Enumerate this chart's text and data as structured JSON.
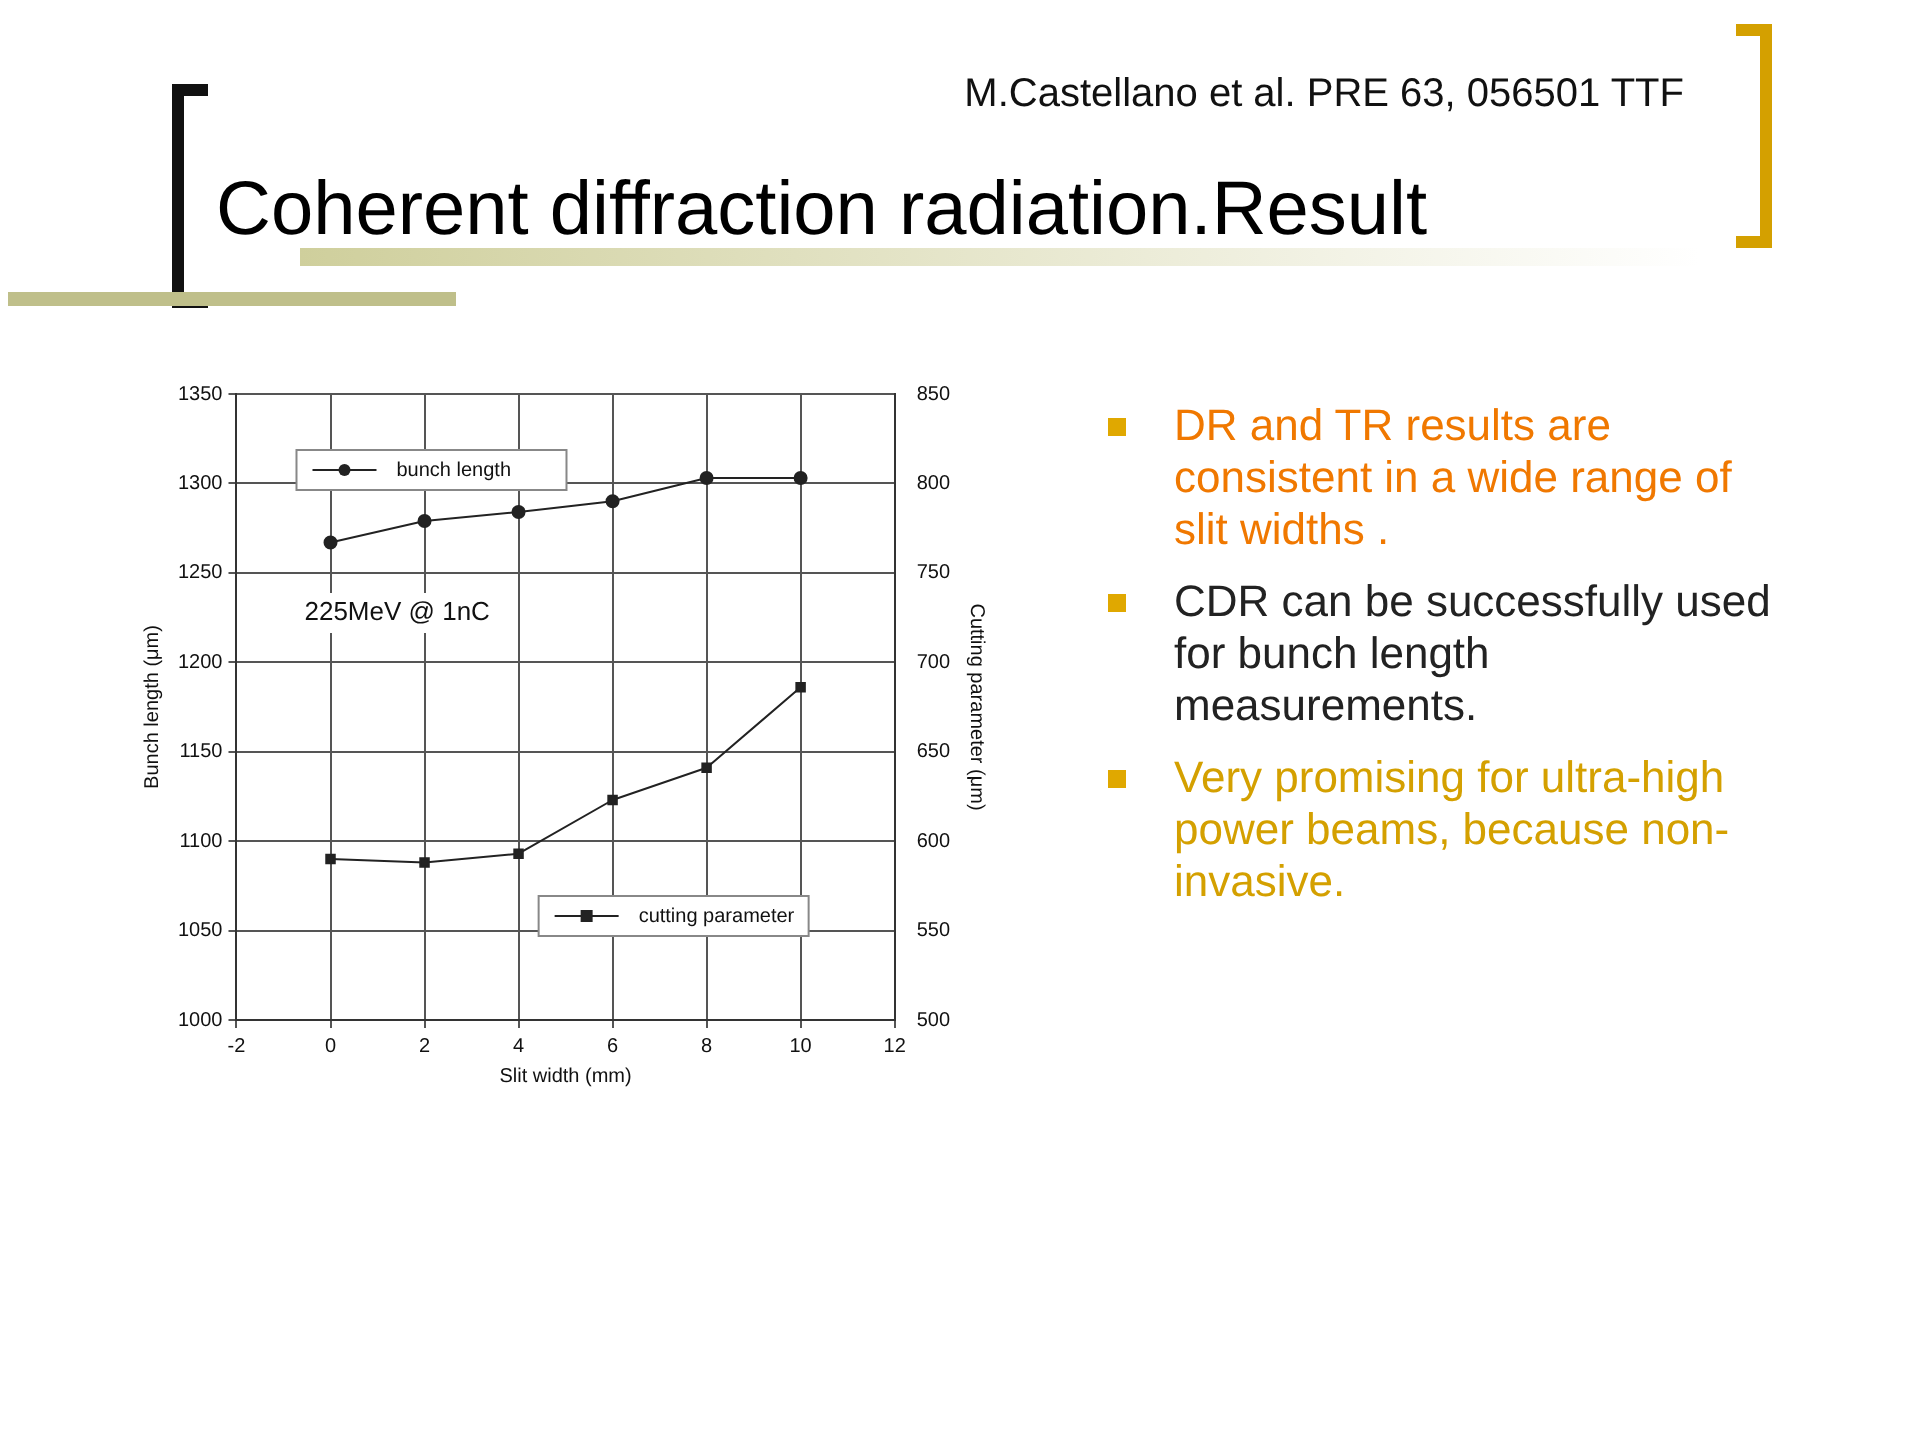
{
  "chart_data": {
    "type": "line",
    "title": "Coherent diffraction radiation.Result",
    "subtitle": "M.Castellano et al. PRE 63, 056501    TTF",
    "xlabel": "Slit width (mm)",
    "ylabel": "Bunch length (μm)",
    "y2label": "Cutting parameter (μm)",
    "x": [
      0,
      2,
      4,
      6,
      8,
      10
    ],
    "series": [
      {
        "name": "bunch length",
        "color": "#222222",
        "marker": "circle",
        "values": [
          1267,
          1279,
          1284,
          1290,
          1303,
          1303
        ]
      },
      {
        "name": "cutting parameter",
        "color": "#222222",
        "marker": "square",
        "axis": "y2",
        "values": [
          590,
          588,
          593,
          623,
          641,
          686
        ]
      }
    ],
    "xlim": [
      -2,
      12
    ],
    "xticks": [
      -2,
      0,
      2,
      4,
      6,
      8,
      10,
      12
    ],
    "ylim": [
      1000,
      1350
    ],
    "yticks": [
      1000,
      1050,
      1100,
      1150,
      1200,
      1250,
      1300,
      1350
    ],
    "y2lim": [
      500,
      850
    ],
    "y2ticks": [
      500,
      550,
      600,
      650,
      700,
      750,
      800,
      850
    ],
    "grid": true,
    "legend": "top left",
    "line_style": "solid",
    "annotations": [
      "225MeV @ 1nC",
      "DR and TR results are consistent in a wide range of slit widths .",
      "CDR can be successfully used for bunch length measurements.",
      "Very promising for ultra-high power beams, because non-invasive."
    ]
  }
}
